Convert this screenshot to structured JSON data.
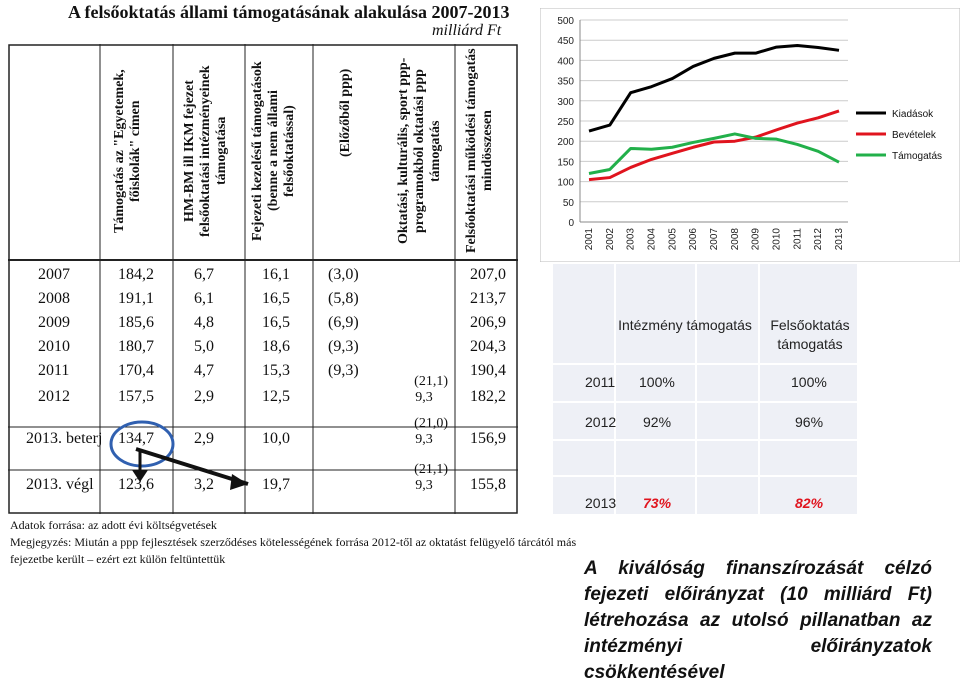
{
  "table": {
    "title": "A felsőoktatás állami támogatásának alakulása 2007-2013",
    "unit": "milliárd Ft",
    "headers": [
      "Támogatás az \"Egyetemek, főiskolák\" címen",
      "HM-BM ill IKM fejezet felsőoktatási intézményeinek támogatása",
      "Fejezeti kezelésű támogatások (benne a nem állami felsőoktatással)",
      "(Előzőből ppp)",
      "Oktatási, kulturális, sport ppp-programokból oktatási ppp támogatás",
      "Felsőoktatási működési támogatás mindösszesen"
    ],
    "rows": [
      {
        "year": "2007",
        "c1": "184,2",
        "c2": "6,7",
        "c3": "16,1",
        "c4": "(3,0)",
        "c5": "",
        "c5b": "",
        "c6": "207,0"
      },
      {
        "year": "2008",
        "c1": "191,1",
        "c2": "6,1",
        "c3": "16,5",
        "c4": "(5,8)",
        "c5": "",
        "c5b": "",
        "c6": "213,7"
      },
      {
        "year": "2009",
        "c1": "185,6",
        "c2": "4,8",
        "c3": "16,5",
        "c4": "(6,9)",
        "c5": "",
        "c5b": "",
        "c6": "206,9"
      },
      {
        "year": "2010",
        "c1": "180,7",
        "c2": "5,0",
        "c3": "18,6",
        "c4": "(9,3)",
        "c5": "",
        "c5b": "",
        "c6": "204,3"
      },
      {
        "year": "2011",
        "c1": "170,4",
        "c2": "4,7",
        "c3": "15,3",
        "c4": "(9,3)",
        "c5": "",
        "c5b": "",
        "c6": "190,4"
      },
      {
        "year": "2012",
        "c1": "157,5",
        "c2": "2,9",
        "c3": "12,5",
        "c4": "",
        "c5": "(21,1)",
        "c5b": "9,3",
        "c6": "182,2"
      },
      {
        "year": "2013. beterj",
        "c1": "134,7",
        "c2": "2,9",
        "c3": "10,0",
        "c4": "",
        "c5": "(21,0)",
        "c5b": "9,3",
        "c6": "156,9"
      },
      {
        "year": "2013. végl",
        "c1": "123,6",
        "c2": "3,2",
        "c3": "19,7",
        "c4": "",
        "c5": "(21,1)",
        "c5b": "9,3",
        "c6": "155,8"
      }
    ],
    "source": "Adatok forrása: az adott évi költségvetések",
    "remark": "Megjegyzés: Miután a ppp fejlesztések szerződéses kötelességének forrása 2012-től az oktatást felügyelő tárcától más fejezetbe került – ezért ezt külön feltüntettük"
  },
  "chart_data": {
    "type": "line",
    "x": [
      "2001",
      "2002",
      "2003",
      "2004",
      "2005",
      "2006",
      "2007",
      "2008",
      "2009",
      "2010",
      "2011",
      "2012",
      "2013"
    ],
    "ylim": [
      0,
      500
    ],
    "yticks": [
      "0",
      "50",
      "100",
      "150",
      "200",
      "250",
      "300",
      "350",
      "400",
      "450",
      "500"
    ],
    "grid": true,
    "legend": "right",
    "series": [
      {
        "name": "Kiadások",
        "color": "#000000",
        "values": [
          225,
          240,
          320,
          335,
          355,
          385,
          405,
          418,
          418,
          433,
          437,
          432,
          425
        ]
      },
      {
        "name": "Bevételek",
        "color": "#e0141e",
        "values": [
          105,
          110,
          135,
          155,
          170,
          185,
          198,
          200,
          210,
          228,
          245,
          258,
          275
        ]
      },
      {
        "name": "Támogatás",
        "color": "#22b04a",
        "values": [
          120,
          130,
          182,
          180,
          185,
          197,
          207,
          218,
          207,
          205,
          192,
          175,
          148
        ]
      }
    ]
  },
  "pct_table": {
    "head1": "Intézmény támogatás",
    "head2": "Felsőoktatás támogatás",
    "rows": [
      {
        "year": "2011",
        "v1": "100%",
        "v2": "100%"
      },
      {
        "year": "2012",
        "v1": "92%",
        "v2": "96%"
      },
      {
        "year": "2013",
        "v1": "73%",
        "v2": "82%"
      }
    ],
    "highlight_color": "#e0141e"
  },
  "caption": "A kiválóság finanszírozását célzó fejezeti előirányzat (10 milliárd Ft) létrehozása az utolsó pillanatban az intézményi előirányzatok csökkentésével"
}
